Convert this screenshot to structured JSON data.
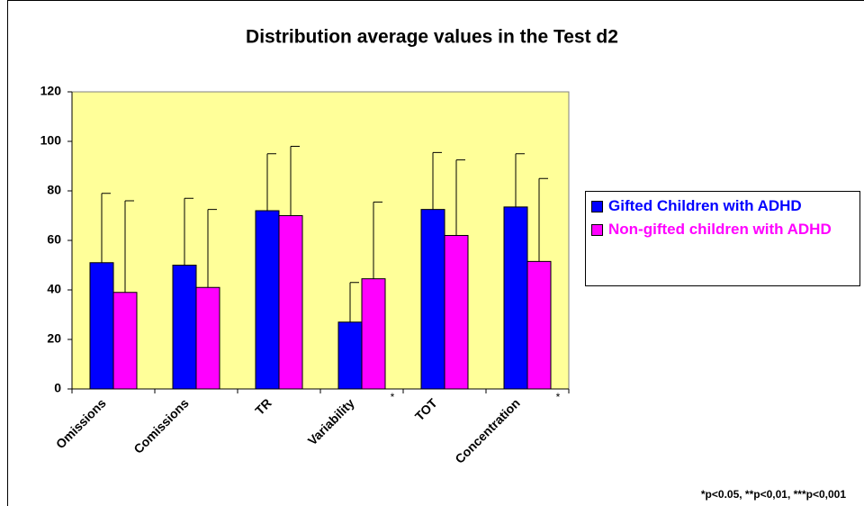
{
  "chart_data": {
    "type": "bar",
    "title": "Distribution average values in the Test d2",
    "categories": [
      "Omissions",
      "Comissions",
      "TR",
      "Variability",
      "TOT",
      "Concentration"
    ],
    "series": [
      {
        "name": "Gifted Children with ADHD",
        "color": "#0000ff",
        "values": [
          51,
          50,
          72,
          27,
          72.5,
          73.5
        ],
        "errors": [
          28,
          27,
          23,
          16,
          23,
          21.5
        ]
      },
      {
        "name": "Non-gifted children with ADHD",
        "color": "#ff00ff",
        "values": [
          39,
          41,
          70,
          44.5,
          62,
          51.5
        ],
        "errors": [
          37,
          31.5,
          28,
          31,
          30.5,
          33.5
        ]
      }
    ],
    "ylim": [
      0,
      120
    ],
    "yticks": [
      0,
      20,
      40,
      60,
      80,
      100,
      120
    ],
    "plot_background": "#ffff99",
    "annotations": [
      {
        "category": "Variability",
        "text": "*"
      },
      {
        "category": "Concentration",
        "text": "*"
      }
    ],
    "footnote": "*p<0.05, **p<0,01, ***p<0,001",
    "legend": "right"
  }
}
